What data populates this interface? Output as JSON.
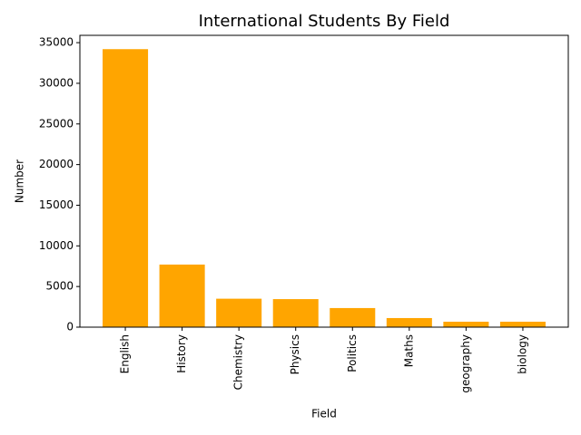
{
  "chart_data": {
    "type": "bar",
    "title": "International Students By Field",
    "x_label": "Field",
    "y_label": "Number",
    "categories": [
      "English",
      "History",
      "Chemistry",
      "Physics",
      "Politics",
      "Maths",
      "geography",
      "biology"
    ],
    "values": [
      34200,
      7700,
      3500,
      3450,
      2350,
      1120,
      670,
      670
    ],
    "color": "#ffa500",
    "ylim": [
      0,
      35900
    ],
    "yticks": [
      0,
      5000,
      10000,
      15000,
      20000,
      25000,
      30000,
      35000
    ]
  }
}
